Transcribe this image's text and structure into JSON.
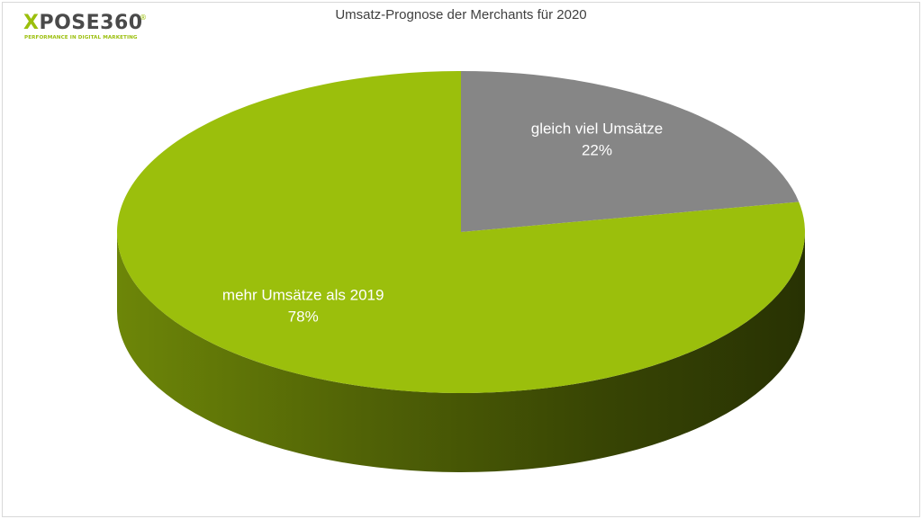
{
  "logo": {
    "brand_x": "X",
    "brand_rest": "POSE360",
    "registered_mark": "®",
    "tagline": "PERFORMANCE IN DIGITAL MARKETING"
  },
  "colors": {
    "green": "#9bbf0c",
    "gray": "#868686",
    "label_text": "#ffffff",
    "title_text": "#404040"
  },
  "chart_data": {
    "type": "pie",
    "style": "3d",
    "title": "Umsatz-Prognose der Merchants für 2020",
    "legend": "none",
    "slices": [
      {
        "label": "gleich viel Umsätze",
        "value": 22,
        "display": "22%",
        "color": "#868686"
      },
      {
        "label": "mehr Umsätze als 2019",
        "value": 78,
        "display": "78%",
        "color": "#9bbf0c"
      }
    ]
  }
}
